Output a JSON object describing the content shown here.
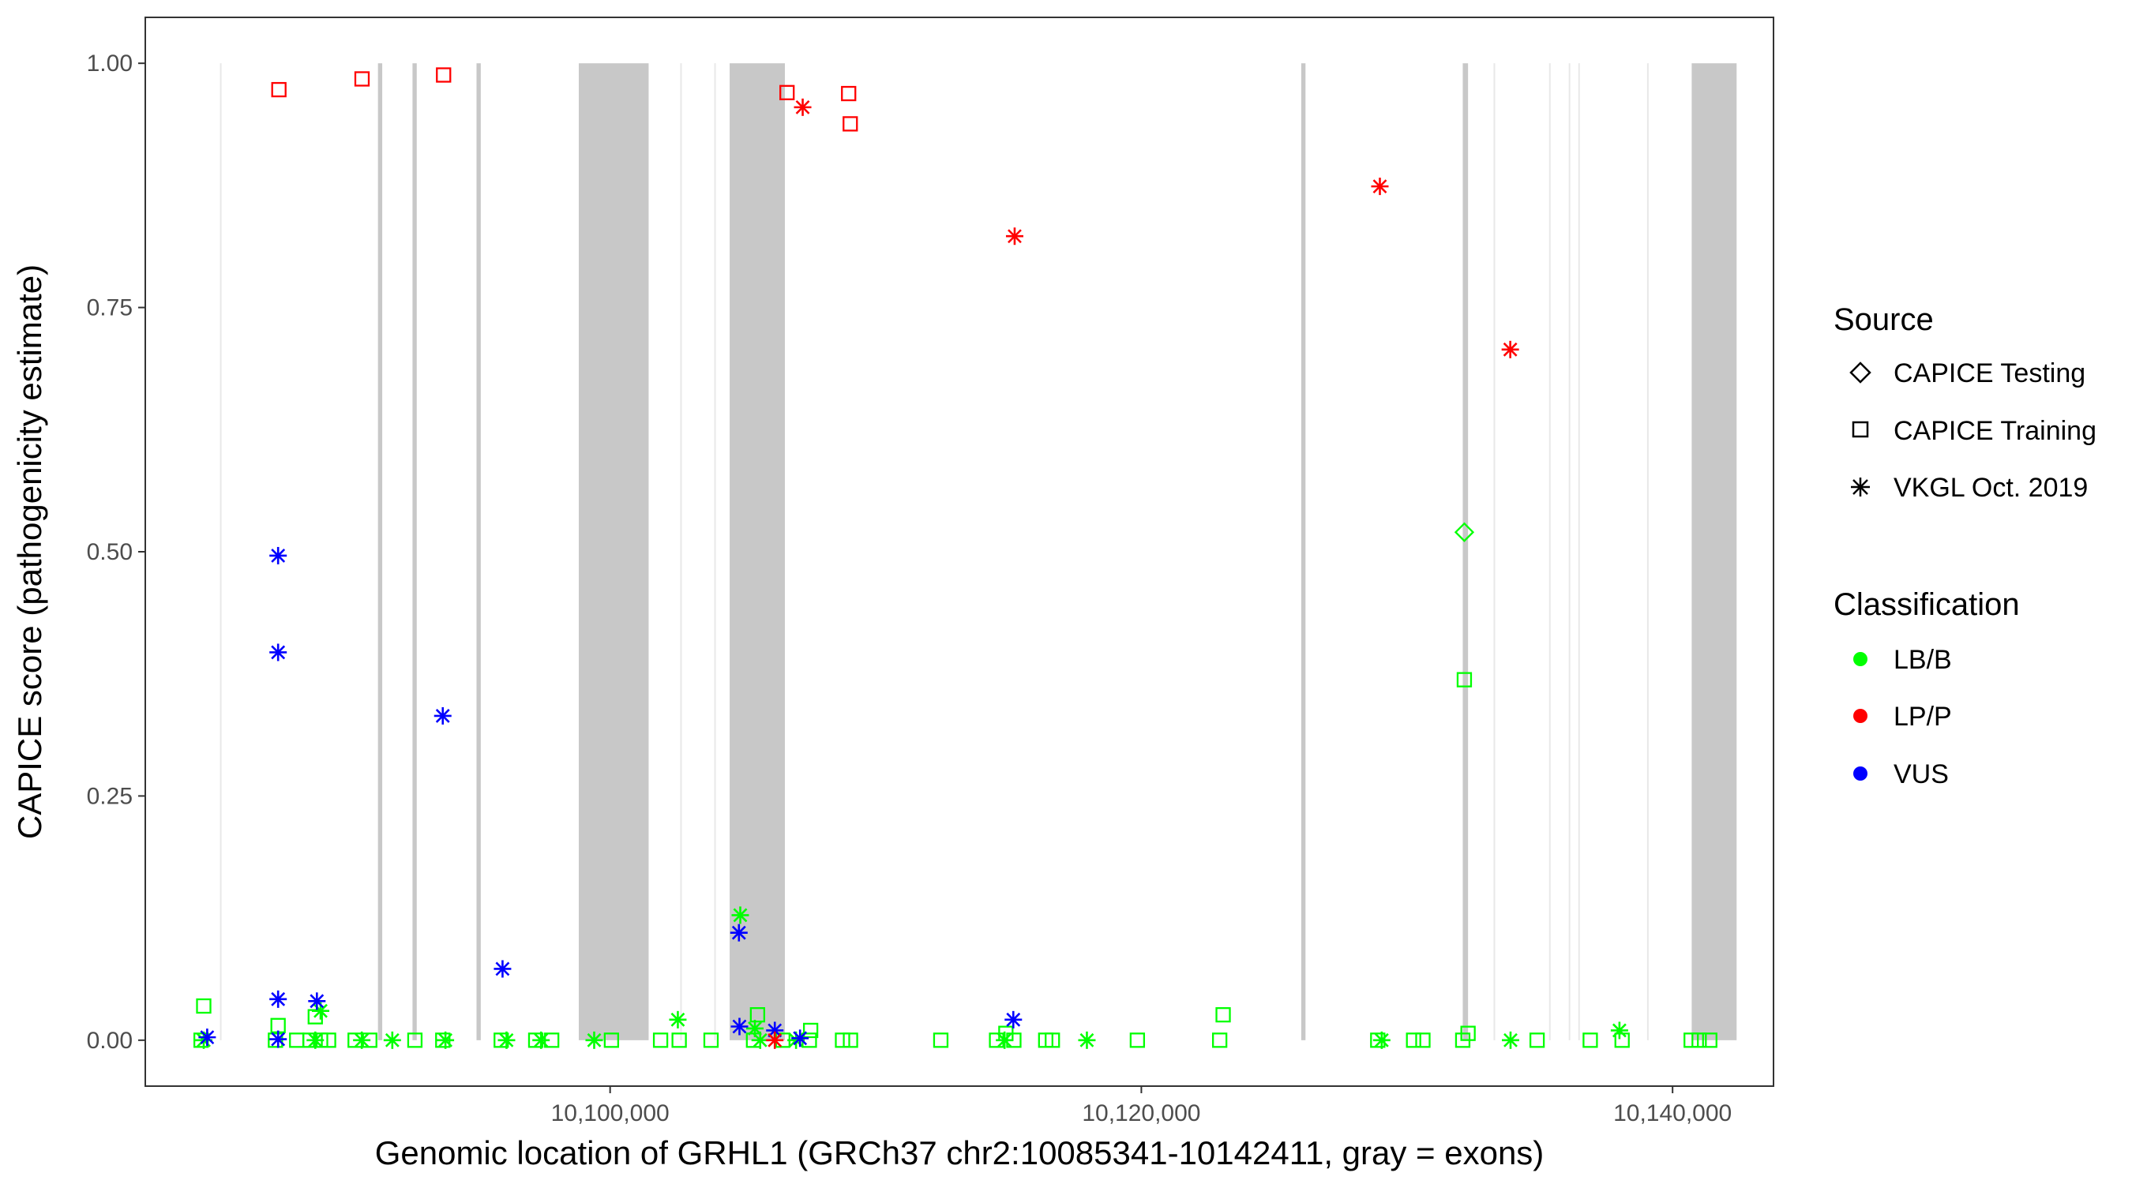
{
  "chart_data": {
    "type": "scatter",
    "xlabel": "Genomic location of GRHL1 (GRCh37 chr2:10085341-10142411, gray = exons)",
    "ylabel": "CAPICE score (pathogenicity estimate)",
    "xlim": [
      10082500,
      10143800
    ],
    "ylim": [
      -0.047,
      1.047
    ],
    "x_ticks": [
      10100000,
      10120000,
      10140000
    ],
    "x_tick_labels": [
      "10,100,000",
      "10,120,000",
      "10,140,000"
    ],
    "y_ticks": [
      0,
      0.25,
      0.5,
      0.75,
      1.0
    ],
    "y_tick_labels": [
      "0.00",
      "0.25",
      "0.50",
      "0.75",
      "1.00"
    ],
    "grid": false,
    "legend_position": "right",
    "legend": {
      "source_title": "Source",
      "source": [
        {
          "label": "CAPICE Testing",
          "shape": "diamond"
        },
        {
          "label": "CAPICE Training",
          "shape": "square"
        },
        {
          "label": "VKGL Oct. 2019",
          "shape": "asterisk"
        }
      ],
      "classification_title": "Classification",
      "classification": [
        {
          "label": "LB/B",
          "color": "#00ff00"
        },
        {
          "label": "LP/P",
          "color": "#ff0000"
        },
        {
          "label": "VUS",
          "color": "#0000ff"
        }
      ]
    },
    "colors": {
      "LB/B": "#00ff00",
      "LP/P": "#ff0000",
      "VUS": "#0000ff",
      "exon": "#c8c8c8",
      "intron_line": "#e8e8e8"
    },
    "exons": [
      [
        10091260,
        10091420
      ],
      [
        10092560,
        10092720
      ],
      [
        10094970,
        10095130
      ],
      [
        10098820,
        10101450
      ],
      [
        10104500,
        10106580
      ],
      [
        10126020,
        10126180
      ],
      [
        10132100,
        10132300
      ],
      [
        10140720,
        10142411
      ]
    ],
    "exon_edges": [
      10085341,
      10102670,
      10103950,
      10133290,
      10135380,
      10136120,
      10136480,
      10139070
    ],
    "points": [
      {
        "x": 10087530,
        "y": 0.973,
        "source": "CAPICE Training",
        "class": "LP/P"
      },
      {
        "x": 10090660,
        "y": 0.984,
        "source": "CAPICE Training",
        "class": "LP/P"
      },
      {
        "x": 10093730,
        "y": 0.988,
        "source": "CAPICE Training",
        "class": "LP/P"
      },
      {
        "x": 10106660,
        "y": 0.97,
        "source": "CAPICE Training",
        "class": "LP/P"
      },
      {
        "x": 10108980,
        "y": 0.969,
        "source": "CAPICE Training",
        "class": "LP/P"
      },
      {
        "x": 10109040,
        "y": 0.938,
        "source": "CAPICE Training",
        "class": "LP/P"
      },
      {
        "x": 10107250,
        "y": 0.955,
        "source": "VKGL Oct. 2019",
        "class": "LP/P"
      },
      {
        "x": 10115230,
        "y": 0.823,
        "source": "VKGL Oct. 2019",
        "class": "LP/P"
      },
      {
        "x": 10128980,
        "y": 0.874,
        "source": "VKGL Oct. 2019",
        "class": "LP/P"
      },
      {
        "x": 10133890,
        "y": 0.707,
        "source": "VKGL Oct. 2019",
        "class": "LP/P"
      },
      {
        "x": 10106200,
        "y": 0.0,
        "source": "VKGL Oct. 2019",
        "class": "LP/P"
      },
      {
        "x": 10087500,
        "y": 0.496,
        "source": "VKGL Oct. 2019",
        "class": "VUS"
      },
      {
        "x": 10087500,
        "y": 0.397,
        "source": "VKGL Oct. 2019",
        "class": "VUS"
      },
      {
        "x": 10093700,
        "y": 0.332,
        "source": "VKGL Oct. 2019",
        "class": "VUS"
      },
      {
        "x": 10095950,
        "y": 0.073,
        "source": "VKGL Oct. 2019",
        "class": "VUS"
      },
      {
        "x": 10104850,
        "y": 0.11,
        "source": "VKGL Oct. 2019",
        "class": "VUS"
      },
      {
        "x": 10087500,
        "y": 0.042,
        "source": "VKGL Oct. 2019",
        "class": "VUS"
      },
      {
        "x": 10088960,
        "y": 0.04,
        "source": "VKGL Oct. 2019",
        "class": "VUS"
      },
      {
        "x": 10115180,
        "y": 0.021,
        "source": "VKGL Oct. 2019",
        "class": "VUS"
      },
      {
        "x": 10104870,
        "y": 0.014,
        "source": "VKGL Oct. 2019",
        "class": "VUS"
      },
      {
        "x": 10106200,
        "y": 0.01,
        "source": "VKGL Oct. 2019",
        "class": "VUS"
      },
      {
        "x": 10084830,
        "y": 0.003,
        "source": "VKGL Oct. 2019",
        "class": "VUS"
      },
      {
        "x": 10087500,
        "y": 0.001,
        "source": "VKGL Oct. 2019",
        "class": "VUS"
      },
      {
        "x": 10107150,
        "y": 0.002,
        "source": "VKGL Oct. 2019",
        "class": "VUS"
      },
      {
        "x": 10132160,
        "y": 0.52,
        "source": "CAPICE Testing",
        "class": "LB/B"
      },
      {
        "x": 10132160,
        "y": 0.369,
        "source": "CAPICE Training",
        "class": "LB/B"
      },
      {
        "x": 10104900,
        "y": 0.128,
        "source": "VKGL Oct. 2019",
        "class": "LB/B"
      },
      {
        "x": 10084700,
        "y": 0.035,
        "source": "CAPICE Training",
        "class": "LB/B"
      },
      {
        "x": 10088900,
        "y": 0.024,
        "source": "CAPICE Training",
        "class": "LB/B"
      },
      {
        "x": 10089100,
        "y": 0.03,
        "source": "VKGL Oct. 2019",
        "class": "LB/B"
      },
      {
        "x": 10087500,
        "y": 0.015,
        "source": "CAPICE Training",
        "class": "LB/B"
      },
      {
        "x": 10102550,
        "y": 0.021,
        "source": "VKGL Oct. 2019",
        "class": "LB/B"
      },
      {
        "x": 10105550,
        "y": 0.026,
        "source": "CAPICE Training",
        "class": "LB/B"
      },
      {
        "x": 10105450,
        "y": 0.012,
        "source": "VKGL Oct. 2019",
        "class": "LB/B"
      },
      {
        "x": 10107550,
        "y": 0.01,
        "source": "CAPICE Training",
        "class": "LB/B"
      },
      {
        "x": 10114900,
        "y": 0.007,
        "source": "CAPICE Training",
        "class": "LB/B"
      },
      {
        "x": 10123080,
        "y": 0.026,
        "source": "CAPICE Training",
        "class": "LB/B"
      },
      {
        "x": 10132300,
        "y": 0.007,
        "source": "CAPICE Training",
        "class": "LB/B"
      },
      {
        "x": 10138000,
        "y": 0.01,
        "source": "VKGL Oct. 2019",
        "class": "LB/B"
      },
      {
        "x": 10084600,
        "y": 0.0,
        "source": "CAPICE Training",
        "class": "LB/B"
      },
      {
        "x": 10084700,
        "y": 0.0,
        "source": "VKGL Oct. 2019",
        "class": "LB/B"
      },
      {
        "x": 10087400,
        "y": 0.0,
        "source": "CAPICE Training",
        "class": "LB/B"
      },
      {
        "x": 10088200,
        "y": 0.0,
        "source": "CAPICE Training",
        "class": "LB/B"
      },
      {
        "x": 10088700,
        "y": 0.0,
        "source": "CAPICE Training",
        "class": "LB/B"
      },
      {
        "x": 10088900,
        "y": 0.0,
        "source": "VKGL Oct. 2019",
        "class": "LB/B"
      },
      {
        "x": 10089100,
        "y": 0.0,
        "source": "CAPICE Training",
        "class": "LB/B"
      },
      {
        "x": 10089400,
        "y": 0.0,
        "source": "CAPICE Training",
        "class": "LB/B"
      },
      {
        "x": 10090400,
        "y": 0.0,
        "source": "CAPICE Training",
        "class": "LB/B"
      },
      {
        "x": 10090650,
        "y": 0.0,
        "source": "VKGL Oct. 2019",
        "class": "LB/B"
      },
      {
        "x": 10090950,
        "y": 0.0,
        "source": "CAPICE Training",
        "class": "LB/B"
      },
      {
        "x": 10091800,
        "y": 0.0,
        "source": "VKGL Oct. 2019",
        "class": "LB/B"
      },
      {
        "x": 10092650,
        "y": 0.0,
        "source": "CAPICE Training",
        "class": "LB/B"
      },
      {
        "x": 10093700,
        "y": 0.0,
        "source": "CAPICE Training",
        "class": "LB/B"
      },
      {
        "x": 10093800,
        "y": 0.0,
        "source": "VKGL Oct. 2019",
        "class": "LB/B"
      },
      {
        "x": 10095900,
        "y": 0.0,
        "source": "CAPICE Training",
        "class": "LB/B"
      },
      {
        "x": 10096100,
        "y": 0.0,
        "source": "VKGL Oct. 2019",
        "class": "LB/B"
      },
      {
        "x": 10097200,
        "y": 0.0,
        "source": "CAPICE Training",
        "class": "LB/B"
      },
      {
        "x": 10097400,
        "y": 0.0,
        "source": "VKGL Oct. 2019",
        "class": "LB/B"
      },
      {
        "x": 10097800,
        "y": 0.0,
        "source": "CAPICE Training",
        "class": "LB/B"
      },
      {
        "x": 10099400,
        "y": 0.0,
        "source": "VKGL Oct. 2019",
        "class": "LB/B"
      },
      {
        "x": 10100050,
        "y": 0.0,
        "source": "CAPICE Training",
        "class": "LB/B"
      },
      {
        "x": 10101900,
        "y": 0.0,
        "source": "CAPICE Training",
        "class": "LB/B"
      },
      {
        "x": 10102600,
        "y": 0.0,
        "source": "CAPICE Training",
        "class": "LB/B"
      },
      {
        "x": 10103800,
        "y": 0.0,
        "source": "CAPICE Training",
        "class": "LB/B"
      },
      {
        "x": 10105400,
        "y": 0.0,
        "source": "CAPICE Training",
        "class": "LB/B"
      },
      {
        "x": 10105650,
        "y": 0.0,
        "source": "VKGL Oct. 2019",
        "class": "LB/B"
      },
      {
        "x": 10106500,
        "y": 0.0,
        "source": "CAPICE Training",
        "class": "LB/B"
      },
      {
        "x": 10107000,
        "y": 0.0,
        "source": "VKGL Oct. 2019",
        "class": "LB/B"
      },
      {
        "x": 10107500,
        "y": 0.0,
        "source": "CAPICE Training",
        "class": "LB/B"
      },
      {
        "x": 10108750,
        "y": 0.0,
        "source": "CAPICE Training",
        "class": "LB/B"
      },
      {
        "x": 10109050,
        "y": 0.0,
        "source": "CAPICE Training",
        "class": "LB/B"
      },
      {
        "x": 10112450,
        "y": 0.0,
        "source": "CAPICE Training",
        "class": "LB/B"
      },
      {
        "x": 10114550,
        "y": 0.0,
        "source": "CAPICE Training",
        "class": "LB/B"
      },
      {
        "x": 10114850,
        "y": 0.0,
        "source": "VKGL Oct. 2019",
        "class": "LB/B"
      },
      {
        "x": 10115200,
        "y": 0.0,
        "source": "CAPICE Training",
        "class": "LB/B"
      },
      {
        "x": 10116400,
        "y": 0.0,
        "source": "CAPICE Training",
        "class": "LB/B"
      },
      {
        "x": 10116650,
        "y": 0.0,
        "source": "CAPICE Training",
        "class": "LB/B"
      },
      {
        "x": 10117950,
        "y": 0.0,
        "source": "VKGL Oct. 2019",
        "class": "LB/B"
      },
      {
        "x": 10119850,
        "y": 0.0,
        "source": "CAPICE Training",
        "class": "LB/B"
      },
      {
        "x": 10122950,
        "y": 0.0,
        "source": "CAPICE Training",
        "class": "LB/B"
      },
      {
        "x": 10128900,
        "y": 0.0,
        "source": "CAPICE Training",
        "class": "LB/B"
      },
      {
        "x": 10129050,
        "y": 0.0,
        "source": "VKGL Oct. 2019",
        "class": "LB/B"
      },
      {
        "x": 10130250,
        "y": 0.0,
        "source": "CAPICE Training",
        "class": "LB/B"
      },
      {
        "x": 10130600,
        "y": 0.0,
        "source": "CAPICE Training",
        "class": "LB/B"
      },
      {
        "x": 10132100,
        "y": 0.0,
        "source": "CAPICE Training",
        "class": "LB/B"
      },
      {
        "x": 10133900,
        "y": 0.0,
        "source": "VKGL Oct. 2019",
        "class": "LB/B"
      },
      {
        "x": 10134900,
        "y": 0.0,
        "source": "CAPICE Training",
        "class": "LB/B"
      },
      {
        "x": 10136900,
        "y": 0.0,
        "source": "CAPICE Training",
        "class": "LB/B"
      },
      {
        "x": 10138100,
        "y": 0.0,
        "source": "CAPICE Training",
        "class": "LB/B"
      },
      {
        "x": 10140700,
        "y": 0.0,
        "source": "CAPICE Training",
        "class": "LB/B"
      },
      {
        "x": 10141000,
        "y": 0.0,
        "source": "CAPICE Training",
        "class": "LB/B"
      },
      {
        "x": 10141400,
        "y": 0.0,
        "source": "CAPICE Training",
        "class": "LB/B"
      }
    ]
  }
}
